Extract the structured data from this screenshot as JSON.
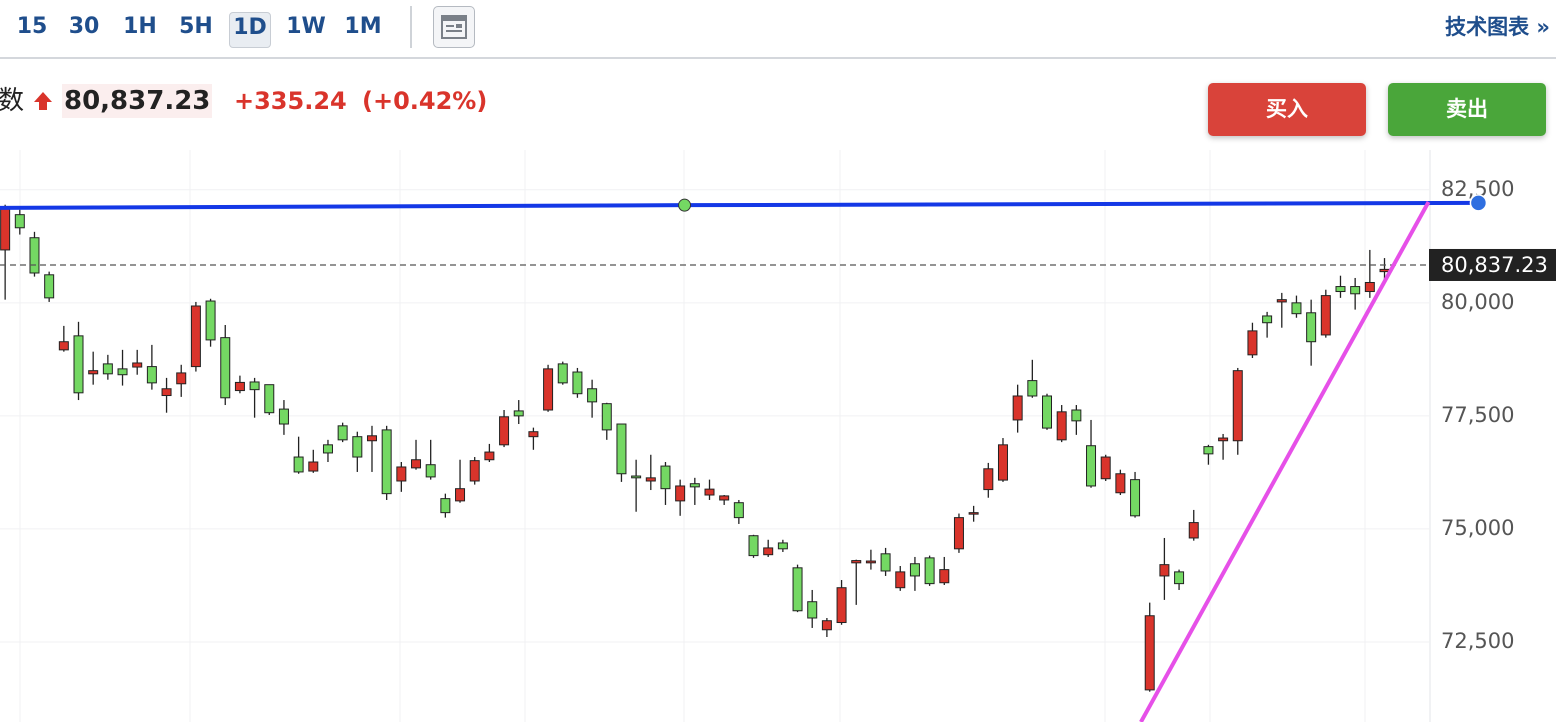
{
  "toolbar": {
    "intervals": [
      "15",
      "30",
      "1H",
      "5H",
      "1D",
      "1W",
      "1M"
    ],
    "selected": 4,
    "link": "技术图表 »"
  },
  "quote": {
    "label": "数",
    "price": "80,837.23",
    "change": "+335.24",
    "percent": "(+0.42%)"
  },
  "buttons": {
    "buy": "买入",
    "sell": "卖出"
  },
  "chart_data": {
    "type": "candlestick",
    "up_color": "#d9342b",
    "down_color": "#74d863",
    "grid": true,
    "ylim": [
      70730,
      83380
    ],
    "xlim": [
      -0.35,
      97.1
    ],
    "yticks": [
      {
        "value": 72500,
        "label": "72,500"
      },
      {
        "value": 75000,
        "label": "75,000"
      },
      {
        "value": 77500,
        "label": "77,500"
      },
      {
        "value": 80000,
        "label": "80,000"
      },
      {
        "value": 82500,
        "label": "82,500"
      }
    ],
    "last_price": {
      "value": 80837.23,
      "label": "80,837.23"
    },
    "open": [
      81170,
      81950,
      81440,
      80620,
      78960,
      79270,
      78430,
      78650,
      78540,
      78580,
      78590,
      77950,
      78210,
      78590,
      80040,
      79230,
      78060,
      78250,
      78190,
      77650,
      76590,
      76280,
      76860,
      77280,
      77040,
      76950,
      77190,
      76060,
      76350,
      76420,
      75670,
      75620,
      76060,
      76530,
      76860,
      77610,
      77040,
      77630,
      78650,
      78470,
      78100,
      77770,
      77320,
      76170,
      76060,
      76390,
      75620,
      76000,
      75750,
      75640,
      75580,
      74850,
      74430,
      74690,
      74140,
      73390,
      72770,
      72930,
      74250,
      74250,
      74450,
      73700,
      74230,
      74360,
      73810,
      74560,
      75330,
      75870,
      76080,
      77410,
      78280,
      77940,
      76970,
      77630,
      76840,
      76110,
      75800,
      76090,
      71440,
      73960,
      74050,
      74800,
      76820,
      76950,
      76950,
      78850,
      79710,
      80020,
      80000,
      79780,
      79290,
      80360,
      80360,
      80250,
      80690
    ],
    "high": [
      82170,
      82060,
      81570,
      80690,
      79490,
      79580,
      78920,
      78850,
      78960,
      78960,
      79070,
      78340,
      78630,
      80020,
      80090,
      79510,
      78390,
      78340,
      78190,
      77850,
      77040,
      76750,
      76970,
      77350,
      77150,
      77280,
      77280,
      76480,
      76970,
      76970,
      75780,
      76530,
      76590,
      76880,
      77630,
      77850,
      77240,
      78630,
      78700,
      78560,
      78300,
      77790,
      77320,
      76530,
      76640,
      76480,
      76090,
      76130,
      76090,
      75750,
      75640,
      74870,
      74760,
      74760,
      74210,
      73650,
      73030,
      73870,
      74320,
      74540,
      74580,
      74180,
      74380,
      74410,
      74380,
      75340,
      75510,
      76460,
      77010,
      78190,
      78740,
      77990,
      77740,
      77740,
      77410,
      76640,
      76310,
      76260,
      73370,
      74800,
      74100,
      75420,
      76860,
      77100,
      78560,
      79560,
      79800,
      80220,
      80160,
      80070,
      80290,
      80600,
      80550,
      81170,
      80990
    ],
    "low": [
      80070,
      81510,
      80580,
      80020,
      78920,
      77850,
      78190,
      78300,
      78170,
      78410,
      78080,
      77570,
      77920,
      78480,
      79030,
      77740,
      78000,
      77460,
      77520,
      77080,
      76220,
      76240,
      76480,
      76920,
      76260,
      76260,
      75640,
      75820,
      76310,
      76090,
      75250,
      75580,
      75980,
      76480,
      76810,
      77320,
      76750,
      77590,
      78190,
      77900,
      77460,
      76970,
      76040,
      75380,
      75860,
      75530,
      75290,
      75530,
      75640,
      75530,
      75110,
      74360,
      74380,
      74490,
      73160,
      72810,
      72610,
      72880,
      73320,
      74100,
      73960,
      73630,
      73630,
      73740,
      73760,
      74470,
      75160,
      75690,
      76040,
      77130,
      77900,
      77190,
      76920,
      77080,
      75910,
      76060,
      75750,
      75250,
      71400,
      73430,
      73650,
      74740,
      76420,
      76530,
      76640,
      78780,
      79230,
      79450,
      79670,
      78610,
      79230,
      80110,
      79850,
      80110,
      80510
    ],
    "close": [
      82100,
      81660,
      80660,
      80110,
      79140,
      78010,
      78500,
      78430,
      78410,
      78670,
      78230,
      78100,
      78450,
      79930,
      79180,
      77900,
      78240,
      78080,
      77570,
      77320,
      76260,
      76480,
      76680,
      76970,
      76590,
      77060,
      75780,
      76370,
      76530,
      76150,
      75360,
      75890,
      76510,
      76700,
      77480,
      77500,
      77150,
      78540,
      78230,
      77990,
      77810,
      77190,
      76220,
      76130,
      76130,
      75890,
      75950,
      75930,
      75880,
      75730,
      75250,
      74410,
      74580,
      74560,
      73190,
      73030,
      72970,
      73700,
      74300,
      74290,
      74070,
      74050,
      73960,
      73790,
      74100,
      75250,
      75360,
      76330,
      76860,
      77940,
      77940,
      77230,
      77590,
      77390,
      75950,
      76590,
      76220,
      75290,
      73080,
      74210,
      73790,
      75140,
      76660,
      77010,
      78500,
      79380,
      79560,
      80070,
      79760,
      79140,
      80160,
      80250,
      80200,
      80450,
      80740
    ],
    "drawings": [
      {
        "color": "#1438e6",
        "x": [
          -0.35,
          46.3,
          100.4
        ],
        "y": [
          82100,
          82160,
          82210
        ]
      },
      {
        "color": "#e650e8",
        "x": [
          77.4,
          97.0
        ],
        "y": [
          70730,
          82230
        ]
      }
    ]
  }
}
